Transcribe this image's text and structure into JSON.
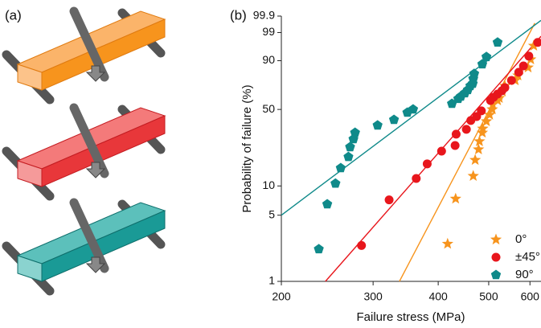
{
  "panel_labels": [
    "(a)",
    "(b)"
  ],
  "chart_data": {
    "type": "scatter",
    "x_label": "Failure stress (MPa)",
    "y_label": "Probability of failure (%)",
    "xscale": "log",
    "yscale": "weibull",
    "xlim": [
      200,
      630
    ],
    "ylim": [
      1,
      99.9
    ],
    "xticks": [
      200,
      300,
      400,
      500,
      600
    ],
    "yticks": [
      1,
      5,
      10,
      50,
      90,
      99,
      99.9
    ],
    "legend": "lower right",
    "series": [
      {
        "name": "0°",
        "color": "#f7941d",
        "marker": "star",
        "x": [
          417,
          432,
          467,
          471,
          478,
          480,
          486,
          487,
          495,
          502,
          508,
          509,
          520,
          524,
          531,
          537,
          562,
          569,
          595,
          602,
          610
        ],
        "values": [
          2.5,
          7.4,
          12.6,
          18.1,
          22.8,
          27.1,
          32.4,
          35.1,
          40.4,
          45.5,
          50.1,
          54.3,
          57.9,
          60.1,
          65.9,
          71.0,
          75.8,
          79.8,
          85.7,
          90.7,
          96.4
        ],
        "fit_x": [
          337,
          613
        ],
        "fit_y": [
          1,
          99.7
        ]
      },
      {
        "name": "±45°",
        "color": "#e8161c",
        "marker": "circle",
        "x": [
          285,
          322,
          363,
          381,
          406,
          431,
          433,
          453,
          462,
          474,
          484,
          504,
          511,
          520,
          530,
          537,
          553,
          571,
          583,
          597,
          621
        ],
        "values": [
          2.4,
          7.2,
          11.9,
          16.6,
          22.0,
          24.8,
          31.4,
          34.6,
          41.0,
          44.1,
          48.8,
          57.9,
          60.8,
          63.7,
          66.6,
          69.5,
          75.8,
          82.3,
          86.8,
          92.4,
          97.3
        ],
        "fit_x": [
          243,
          630
        ],
        "fit_y": [
          1,
          98.5
        ]
      },
      {
        "name": "90°",
        "color": "#0f8a8a",
        "marker": "pentagon",
        "x": [
          236,
          245,
          254,
          260,
          269,
          271,
          275,
          277,
          306,
          329,
          349,
          358,
          425,
          437,
          442,
          450,
          456,
          461,
          466,
          467,
          469,
          486,
          495,
          520
        ],
        "values": [
          2.2,
          6.5,
          10.6,
          15.1,
          19.4,
          24.0,
          28.4,
          32.4,
          37.4,
          41.6,
          47.4,
          50.1,
          55.0,
          59.4,
          61.5,
          64.5,
          67.4,
          71.0,
          73.0,
          77.2,
          81.1,
          87.9,
          92.0,
          97.3
        ],
        "fit_x": [
          200,
          630
        ],
        "fit_y": [
          5,
          99.8
        ]
      }
    ]
  }
}
